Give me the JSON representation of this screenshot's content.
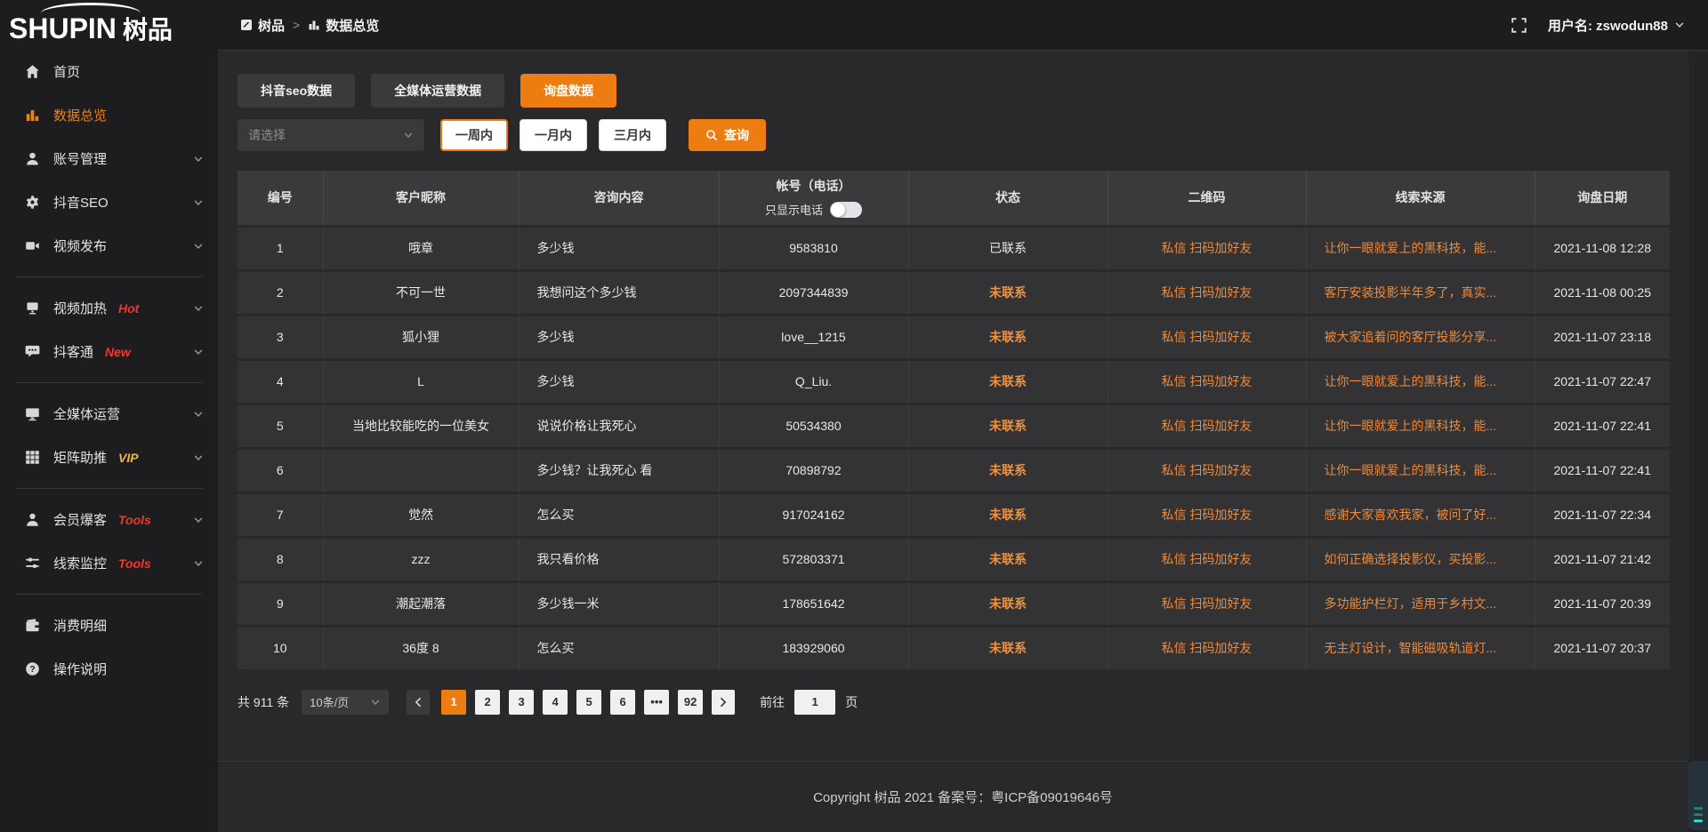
{
  "colors": {
    "accent_orange": "#ED7D11",
    "link_orange": "#EF8A38",
    "status_uncontacted_orange": "#EF9240",
    "badge_red": "#F5342C",
    "badge_yellow": "#F0B73C",
    "sidebar_bg": "#1D1D1F",
    "content_bg": "#29292B",
    "row_bg": "#333335"
  },
  "sidebar": {
    "logo_en": "SHUPIN",
    "logo_cn": "树品",
    "items": [
      {
        "label": "首页",
        "icon": "home-icon",
        "active": false,
        "chevron": false
      },
      {
        "label": "数据总览",
        "icon": "chart-icon",
        "active": true,
        "chevron": false
      },
      {
        "label": "账号管理",
        "icon": "user-icon",
        "chevron": true
      },
      {
        "label": "抖音SEO",
        "icon": "gear-icon",
        "chevron": true
      },
      {
        "label": "视频发布",
        "icon": "video-icon",
        "chevron": true,
        "divider_after": true
      },
      {
        "label": "视频加热",
        "icon": "heat-icon",
        "badge": "Hot",
        "badge_color": "#F5342C",
        "chevron": true
      },
      {
        "label": "抖客通",
        "icon": "chat-icon",
        "badge": "New",
        "badge_color": "#F5342C",
        "chevron": true,
        "divider_after": true
      },
      {
        "label": "全媒体运营",
        "icon": "monitor-icon",
        "chevron": true
      },
      {
        "label": "矩阵助推",
        "icon": "grid-icon",
        "badge": "VIP",
        "badge_color": "#F0B73C",
        "chevron": true,
        "divider_after": true
      },
      {
        "label": "会员爆客",
        "icon": "member-icon",
        "badge": "Tools",
        "badge_color": "#F5342C",
        "chevron": true
      },
      {
        "label": "线索监控",
        "icon": "sliders-icon",
        "badge": "Tools",
        "badge_color": "#F5342C",
        "chevron": true,
        "divider_after": true
      },
      {
        "label": "消费明细",
        "icon": "wallet-icon",
        "chevron": false
      },
      {
        "label": "操作说明",
        "icon": "help-icon",
        "chevron": false
      }
    ]
  },
  "header": {
    "breadcrumb": {
      "item1": "树品",
      "separator": ">",
      "item2": "数据总览"
    },
    "user_label": "用户名: zswodun88"
  },
  "tabs": [
    {
      "label": "抖音seo数据",
      "active": false
    },
    {
      "label": "全媒体运营数据",
      "active": false
    },
    {
      "label": "询盘数据",
      "active": true
    }
  ],
  "filters": {
    "select_placeholder": "请选择",
    "period_buttons": [
      {
        "label": "一周内",
        "active": true
      },
      {
        "label": "一月内",
        "active": false
      },
      {
        "label": "三月内",
        "active": false
      }
    ],
    "search_label": "查询"
  },
  "table": {
    "columns": [
      "编号",
      "客户昵称",
      "咨询内容",
      "帐号（电话）",
      "状态",
      "二维码",
      "线索来源",
      "询盘日期"
    ],
    "phone_toggle_label": "只显示电话",
    "rows": [
      {
        "id": "1",
        "nickname": "哦章",
        "content": "多少钱",
        "account": "9583810",
        "status": "已联系",
        "status_contacted": true,
        "qrcode": "私信 扫码加好友",
        "source": "让你一眼就爱上的黑科技，能...",
        "date": "2021-11-08 12:28"
      },
      {
        "id": "2",
        "nickname": "不可一世",
        "content": "我想问这个多少钱",
        "account": "2097344839",
        "status": "未联系",
        "status_contacted": false,
        "qrcode": "私信 扫码加好友",
        "source": "客厅安装投影半年多了，真实...",
        "date": "2021-11-08 00:25"
      },
      {
        "id": "3",
        "nickname": "狐小狸",
        "content": "多少钱",
        "account": "love__1215",
        "status": "未联系",
        "status_contacted": false,
        "qrcode": "私信 扫码加好友",
        "source": "被大家追着问的客厅投影分享...",
        "date": "2021-11-07 23:18"
      },
      {
        "id": "4",
        "nickname": "L",
        "content": "多少钱",
        "account": "Q_Liu.",
        "status": "未联系",
        "status_contacted": false,
        "qrcode": "私信 扫码加好友",
        "source": "让你一眼就爱上的黑科技，能...",
        "date": "2021-11-07 22:47"
      },
      {
        "id": "5",
        "nickname": "当地比较能吃的一位美女",
        "content": "说说价格让我死心",
        "account": "50534380",
        "status": "未联系",
        "status_contacted": false,
        "qrcode": "私信 扫码加好友",
        "source": "让你一眼就爱上的黑科技，能...",
        "date": "2021-11-07 22:41"
      },
      {
        "id": "6",
        "nickname": "",
        "content": "多少钱？让我死心 看",
        "account": "70898792",
        "status": "未联系",
        "status_contacted": false,
        "qrcode": "私信 扫码加好友",
        "source": "让你一眼就爱上的黑科技，能...",
        "date": "2021-11-07 22:41"
      },
      {
        "id": "7",
        "nickname": "觉然",
        "content": "怎么买",
        "account": "917024162",
        "status": "未联系",
        "status_contacted": false,
        "qrcode": "私信 扫码加好友",
        "source": "感谢大家喜欢我家，被问了好...",
        "date": "2021-11-07 22:34"
      },
      {
        "id": "8",
        "nickname": "zzz",
        "content": "我只看价格",
        "account": "572803371",
        "status": "未联系",
        "status_contacted": false,
        "qrcode": "私信 扫码加好友",
        "source": "如何正确选择投影仪，买投影...",
        "date": "2021-11-07 21:42"
      },
      {
        "id": "9",
        "nickname": "潮起潮落",
        "content": "多少钱一米",
        "account": "178651642",
        "status": "未联系",
        "status_contacted": false,
        "qrcode": "私信 扫码加好友",
        "source": "多功能护栏灯，适用于乡村文...",
        "date": "2021-11-07 20:39"
      },
      {
        "id": "10",
        "nickname": "36度 8",
        "content": "怎么买",
        "account": "183929060",
        "status": "未联系",
        "status_contacted": false,
        "qrcode": "私信 扫码加好友",
        "source": "无主灯设计，智能磁吸轨道灯...",
        "date": "2021-11-07 20:37"
      }
    ]
  },
  "pagination": {
    "total_label": "共 911 条",
    "page_size_label": "10条/页",
    "pages": [
      {
        "label": "1",
        "active": true
      },
      {
        "label": "2",
        "active": false
      },
      {
        "label": "3",
        "active": false
      },
      {
        "label": "4",
        "active": false
      },
      {
        "label": "5",
        "active": false
      },
      {
        "label": "6",
        "active": false
      },
      {
        "label": "•••",
        "active": false
      },
      {
        "label": "92",
        "active": false
      }
    ],
    "goto_label": "前往",
    "goto_value": "1",
    "goto_suffix": "页"
  },
  "footer": {
    "copyright": "Copyright 树品 2021 备案号：粤ICP备09019646号"
  }
}
